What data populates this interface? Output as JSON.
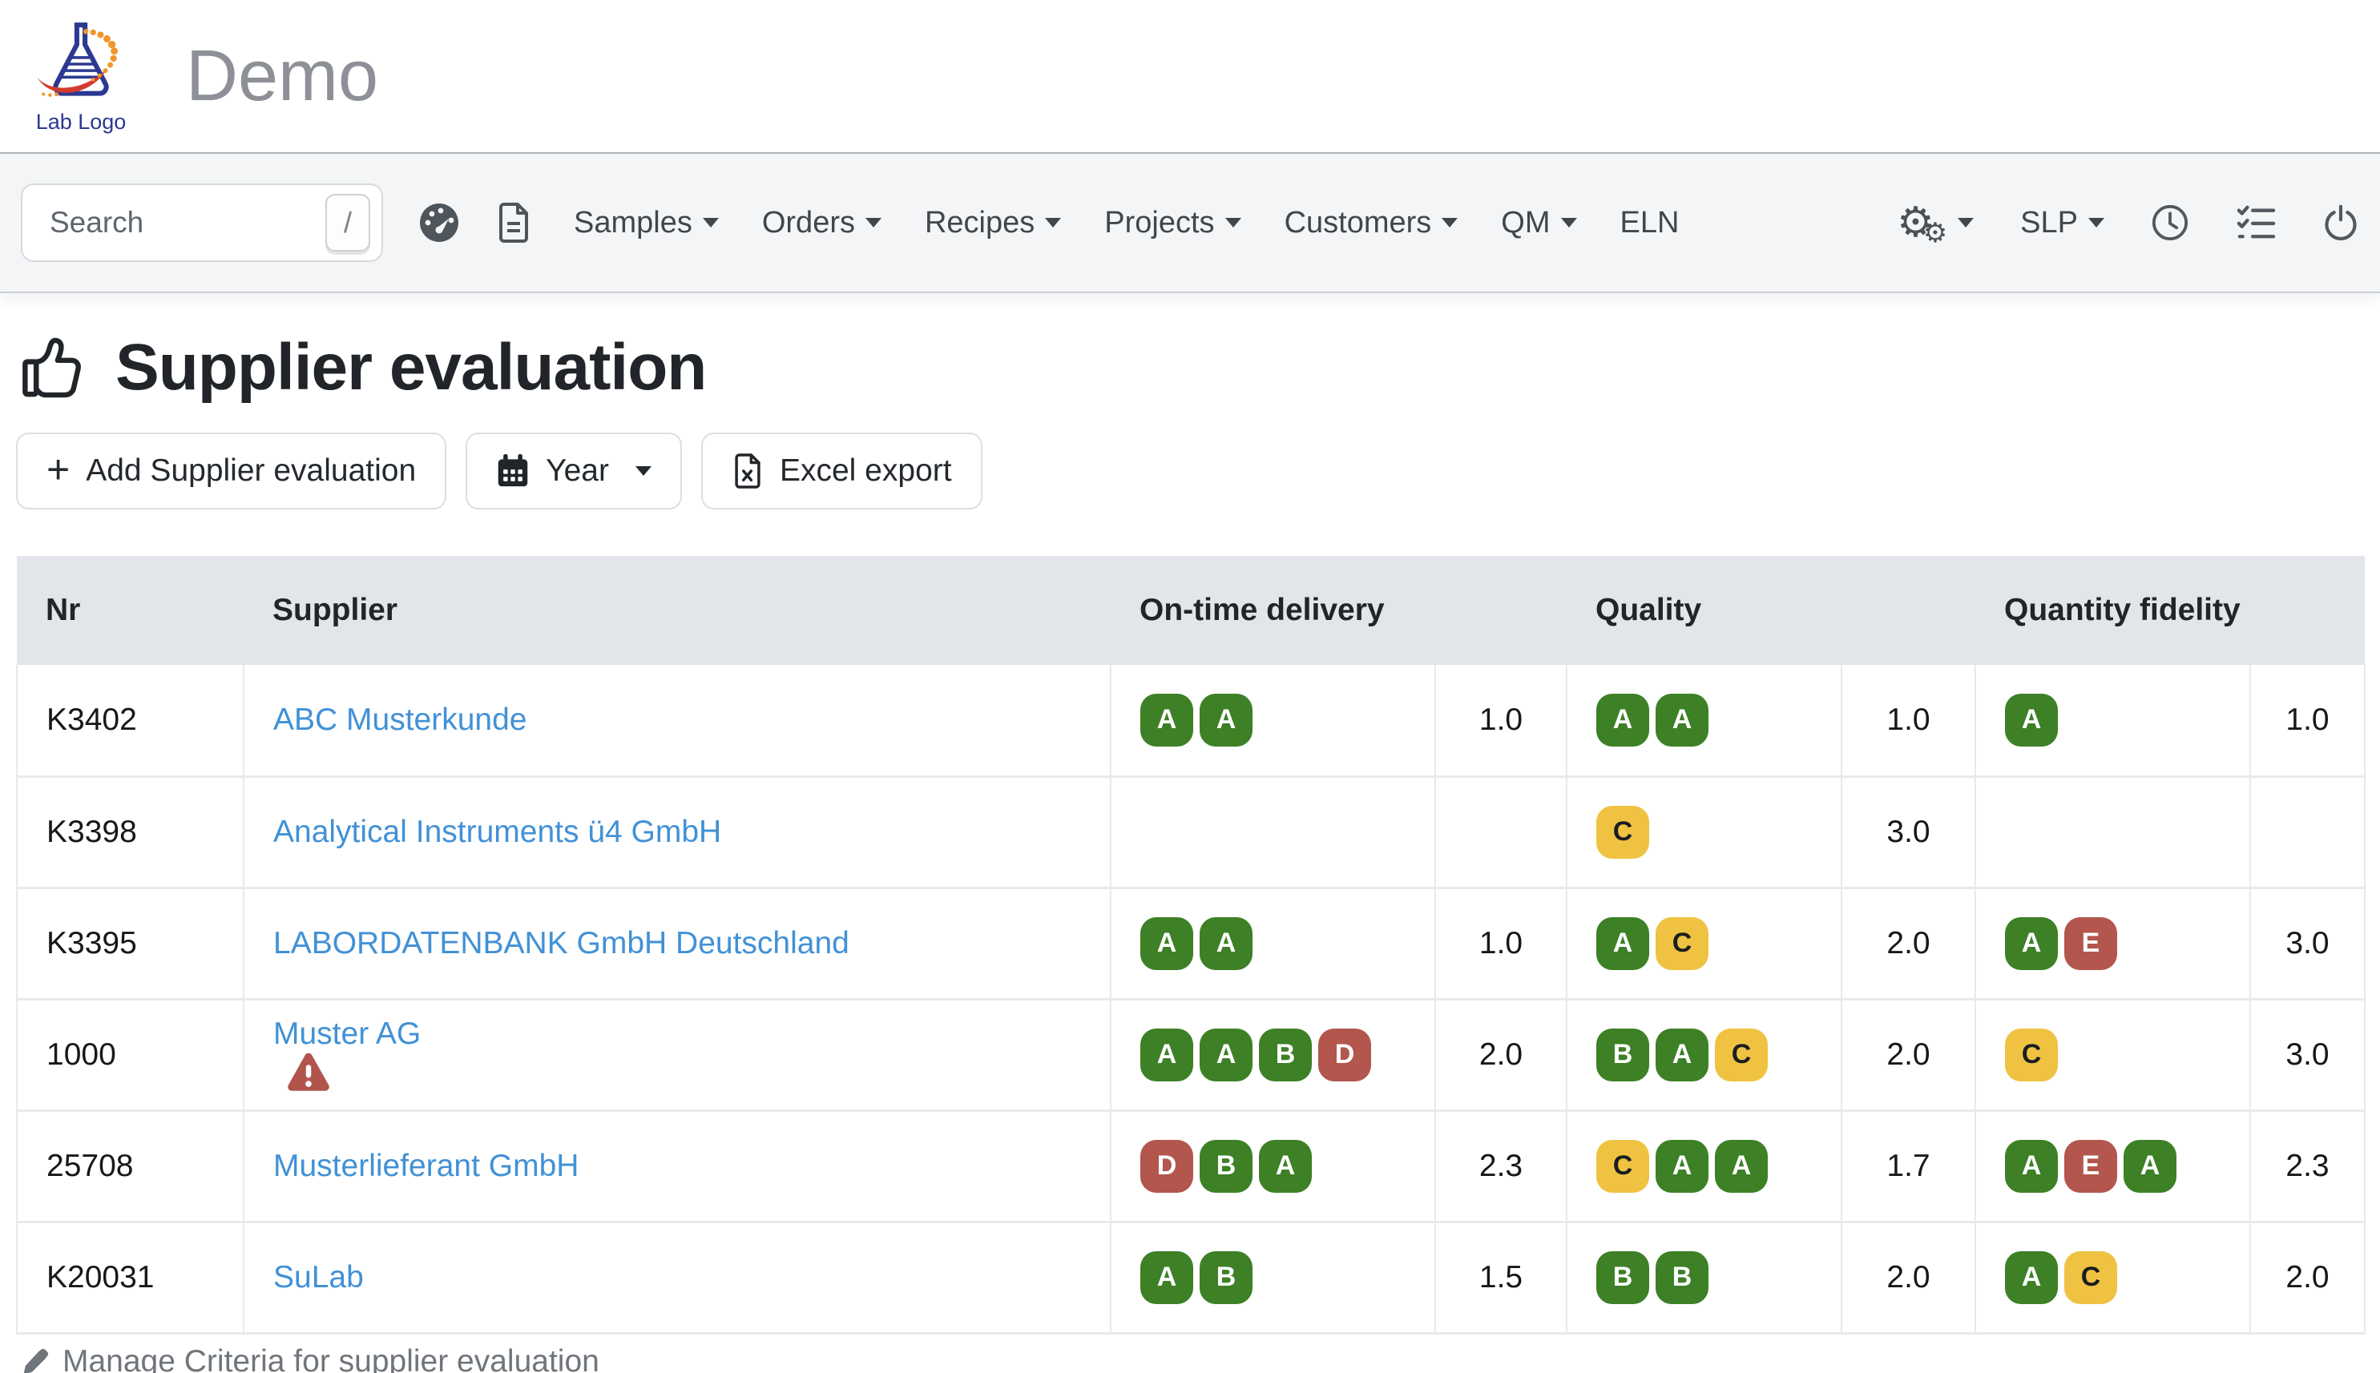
{
  "brand": {
    "logo_caption": "Lab Logo",
    "title": "Demo"
  },
  "navbar": {
    "search_placeholder": "Search",
    "search_shortcut": "/",
    "menus": [
      "Samples",
      "Orders",
      "Recipes",
      "Projects",
      "Customers",
      "QM",
      "ELN"
    ],
    "menu_has_caret": [
      true,
      true,
      true,
      true,
      true,
      true,
      false
    ],
    "slp_label": "SLP"
  },
  "page": {
    "title": "Supplier evaluation",
    "add_button": "Add Supplier evaluation",
    "year_button": "Year",
    "excel_button": "Excel export",
    "manage_link": "Manage Criteria for supplier evaluation"
  },
  "table": {
    "headers": {
      "nr": "Nr",
      "supplier": "Supplier",
      "otd": "On-time delivery",
      "quality": "Quality",
      "qf": "Quantity fidelity"
    },
    "rows": [
      {
        "nr": "K3402",
        "supplier": "ABC Musterkunde",
        "warning": false,
        "otd_badges": [
          "A",
          "A"
        ],
        "otd_value": "1.0",
        "quality_badges": [
          "A",
          "A"
        ],
        "quality_value": "1.0",
        "qf_badges": [
          "A"
        ],
        "qf_value": "1.0"
      },
      {
        "nr": "K3398",
        "supplier": "Analytical Instruments ü4 GmbH",
        "warning": false,
        "otd_badges": [],
        "otd_value": "",
        "quality_badges": [
          "C"
        ],
        "quality_value": "3.0",
        "qf_badges": [],
        "qf_value": ""
      },
      {
        "nr": "K3395",
        "supplier": "LABORDATENBANK GmbH Deutschland",
        "warning": false,
        "otd_badges": [
          "A",
          "A"
        ],
        "otd_value": "1.0",
        "quality_badges": [
          "A",
          "C"
        ],
        "quality_value": "2.0",
        "qf_badges": [
          "A",
          "E"
        ],
        "qf_value": "3.0"
      },
      {
        "nr": "1000",
        "supplier": "Muster AG",
        "warning": true,
        "otd_badges": [
          "A",
          "A",
          "B",
          "D"
        ],
        "otd_value": "2.0",
        "quality_badges": [
          "B",
          "A",
          "C"
        ],
        "quality_value": "2.0",
        "qf_badges": [
          "C"
        ],
        "qf_value": "3.0"
      },
      {
        "nr": "25708",
        "supplier": "Musterlieferant GmbH",
        "warning": false,
        "otd_badges": [
          "D",
          "B",
          "A"
        ],
        "otd_value": "2.3",
        "quality_badges": [
          "C",
          "A",
          "A"
        ],
        "quality_value": "1.7",
        "qf_badges": [
          "A",
          "E",
          "A"
        ],
        "qf_value": "2.3"
      },
      {
        "nr": "K20031",
        "supplier": "SuLab",
        "warning": false,
        "otd_badges": [
          "A",
          "B"
        ],
        "otd_value": "1.5",
        "quality_badges": [
          "B",
          "B"
        ],
        "quality_value": "2.0",
        "qf_badges": [
          "A",
          "C"
        ],
        "qf_value": "2.0"
      }
    ]
  },
  "grade_colors": {
    "A": "green",
    "B": "green",
    "C": "yellow",
    "D": "red",
    "E": "red"
  },
  "colors": {
    "green": "#3d8026",
    "yellow": "#efc341",
    "red": "#b2564e",
    "badge_text_light": "#ffffff",
    "badge_text_dark": "#1a1d20",
    "link": "#4191d6",
    "warning": "#b0544c",
    "logo_navy": "#2b3990",
    "logo_red": "#d23b2f",
    "logo_orange": "#f0962c"
  }
}
